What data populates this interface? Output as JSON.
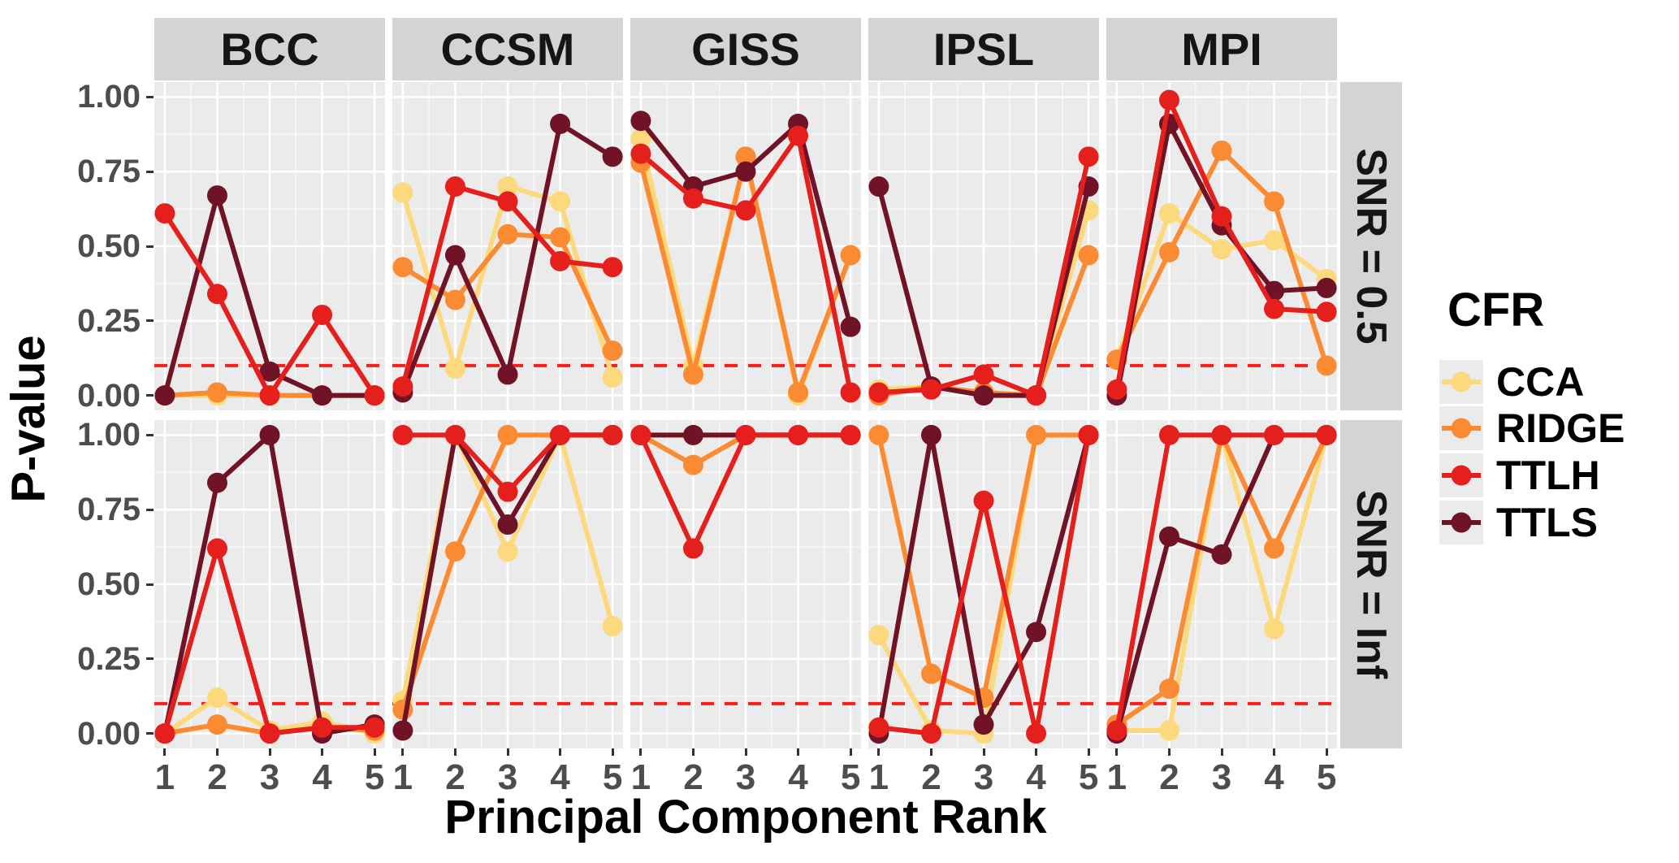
{
  "figure": {
    "y_axis_title": "P-value",
    "x_axis_title": "Principal Component Rank",
    "y_tick_labels": [
      "1.00",
      "0.75",
      "0.50",
      "0.25",
      "0.00"
    ],
    "y_tick_values": [
      1.0,
      0.75,
      0.5,
      0.25,
      0.0
    ],
    "x_tick_labels": [
      "1",
      "2",
      "3",
      "4",
      "5"
    ],
    "col_facets": [
      "BCC",
      "CCSM",
      "GISS",
      "IPSL",
      "MPI"
    ],
    "row_facets": [
      "SNR = 0.5",
      "SNR = Inf"
    ],
    "series_draw_order": [
      "CCA",
      "RIDGE",
      "TTLS",
      "TTLH"
    ],
    "threshold_line": {
      "y": 0.1,
      "color": "#f71e1e",
      "style": "dashed"
    },
    "colors": {
      "CCA": "#fdd97e",
      "RIDGE": "#fb8b33",
      "TTLH": "#e41f1c",
      "TTLS": "#701327",
      "panel_bg": "#ebebeb",
      "grid": "#ffffff",
      "strip_bg": "#d4d4d4",
      "tick_text": "#4d4d4d"
    },
    "legend": {
      "title": "CFR",
      "items": [
        {
          "label": "CCA",
          "color": "#fdd97e"
        },
        {
          "label": "RIDGE",
          "color": "#fb8b33"
        },
        {
          "label": "TTLH",
          "color": "#e41f1c"
        },
        {
          "label": "TTLS",
          "color": "#701327"
        }
      ]
    }
  },
  "chart_data": [
    {
      "type": "line",
      "facet_row": "SNR = 0.5",
      "facet_col": "BCC",
      "x": [
        1,
        2,
        3,
        4,
        5
      ],
      "ylim": [
        0,
        1
      ],
      "series": [
        {
          "name": "CCA",
          "values": [
            0.0,
            0.0,
            0.0,
            0.0,
            0.0
          ]
        },
        {
          "name": "RIDGE",
          "values": [
            0.0,
            0.01,
            0.0,
            0.0,
            0.0
          ]
        },
        {
          "name": "TTLH",
          "values": [
            0.61,
            0.34,
            0.0,
            0.27,
            0.0
          ]
        },
        {
          "name": "TTLS",
          "values": [
            0.0,
            0.67,
            0.08,
            0.0,
            0.0
          ]
        }
      ]
    },
    {
      "type": "line",
      "facet_row": "SNR = 0.5",
      "facet_col": "CCSM",
      "x": [
        1,
        2,
        3,
        4,
        5
      ],
      "ylim": [
        0,
        1
      ],
      "series": [
        {
          "name": "CCA",
          "values": [
            0.68,
            0.09,
            0.7,
            0.65,
            0.06
          ]
        },
        {
          "name": "RIDGE",
          "values": [
            0.43,
            0.32,
            0.54,
            0.53,
            0.15
          ]
        },
        {
          "name": "TTLH",
          "values": [
            0.03,
            0.7,
            0.65,
            0.45,
            0.43
          ]
        },
        {
          "name": "TTLS",
          "values": [
            0.01,
            0.47,
            0.07,
            0.91,
            0.8
          ]
        }
      ]
    },
    {
      "type": "line",
      "facet_row": "SNR = 0.5",
      "facet_col": "GISS",
      "x": [
        1,
        2,
        3,
        4,
        5
      ],
      "ylim": [
        0,
        1
      ],
      "series": [
        {
          "name": "CCA",
          "values": [
            0.86,
            0.1,
            0.8,
            0.0,
            0.47
          ]
        },
        {
          "name": "RIDGE",
          "values": [
            0.78,
            0.07,
            0.8,
            0.01,
            0.47
          ]
        },
        {
          "name": "TTLH",
          "values": [
            0.81,
            0.66,
            0.62,
            0.87,
            0.01
          ]
        },
        {
          "name": "TTLS",
          "values": [
            0.92,
            0.7,
            0.75,
            0.91,
            0.23
          ]
        }
      ]
    },
    {
      "type": "line",
      "facet_row": "SNR = 0.5",
      "facet_col": "IPSL",
      "x": [
        1,
        2,
        3,
        4,
        5
      ],
      "ylim": [
        0,
        1
      ],
      "series": [
        {
          "name": "CCA",
          "values": [
            0.02,
            0.03,
            0.01,
            0.0,
            0.62
          ]
        },
        {
          "name": "RIDGE",
          "values": [
            0.0,
            0.03,
            0.01,
            0.0,
            0.47
          ]
        },
        {
          "name": "TTLH",
          "values": [
            0.01,
            0.02,
            0.07,
            0.0,
            0.8
          ]
        },
        {
          "name": "TTLS",
          "values": [
            0.7,
            0.03,
            0.0,
            0.0,
            0.7
          ]
        }
      ]
    },
    {
      "type": "line",
      "facet_row": "SNR = 0.5",
      "facet_col": "MPI",
      "x": [
        1,
        2,
        3,
        4,
        5
      ],
      "ylim": [
        0,
        1
      ],
      "series": [
        {
          "name": "CCA",
          "values": [
            0.12,
            0.61,
            0.49,
            0.52,
            0.39
          ]
        },
        {
          "name": "RIDGE",
          "values": [
            0.12,
            0.48,
            0.82,
            0.65,
            0.1
          ]
        },
        {
          "name": "TTLH",
          "values": [
            0.02,
            0.99,
            0.6,
            0.29,
            0.28
          ]
        },
        {
          "name": "TTLS",
          "values": [
            0.0,
            0.91,
            0.57,
            0.35,
            0.36
          ]
        }
      ]
    },
    {
      "type": "line",
      "facet_row": "SNR = Inf",
      "facet_col": "BCC",
      "x": [
        1,
        2,
        3,
        4,
        5
      ],
      "ylim": [
        0,
        1
      ],
      "series": [
        {
          "name": "CCA",
          "values": [
            0.0,
            0.12,
            0.01,
            0.04,
            0.0
          ]
        },
        {
          "name": "RIDGE",
          "values": [
            0.0,
            0.03,
            0.0,
            0.02,
            0.01
          ]
        },
        {
          "name": "TTLH",
          "values": [
            0.0,
            0.62,
            0.0,
            0.02,
            0.02
          ]
        },
        {
          "name": "TTLS",
          "values": [
            0.0,
            0.84,
            1.0,
            0.0,
            0.03
          ]
        }
      ]
    },
    {
      "type": "line",
      "facet_row": "SNR = Inf",
      "facet_col": "CCSM",
      "x": [
        1,
        2,
        3,
        4,
        5
      ],
      "ylim": [
        0,
        1
      ],
      "series": [
        {
          "name": "CCA",
          "values": [
            0.11,
            1.0,
            0.61,
            1.0,
            0.36
          ]
        },
        {
          "name": "RIDGE",
          "values": [
            0.08,
            0.61,
            1.0,
            1.0,
            1.0
          ]
        },
        {
          "name": "TTLH",
          "values": [
            1.0,
            1.0,
            0.81,
            1.0,
            1.0
          ]
        },
        {
          "name": "TTLS",
          "values": [
            0.01,
            1.0,
            0.7,
            1.0,
            1.0
          ]
        }
      ]
    },
    {
      "type": "line",
      "facet_row": "SNR = Inf",
      "facet_col": "GISS",
      "x": [
        1,
        2,
        3,
        4,
        5
      ],
      "ylim": [
        0,
        1
      ],
      "series": [
        {
          "name": "CCA",
          "values": [
            1.0,
            1.0,
            1.0,
            1.0,
            1.0
          ]
        },
        {
          "name": "RIDGE",
          "values": [
            1.0,
            0.9,
            1.0,
            1.0,
            1.0
          ]
        },
        {
          "name": "TTLH",
          "values": [
            1.0,
            0.62,
            1.0,
            1.0,
            1.0
          ]
        },
        {
          "name": "TTLS",
          "values": [
            1.0,
            1.0,
            1.0,
            1.0,
            1.0
          ]
        }
      ]
    },
    {
      "type": "line",
      "facet_row": "SNR = Inf",
      "facet_col": "IPSL",
      "x": [
        1,
        2,
        3,
        4,
        5
      ],
      "ylim": [
        0,
        1
      ],
      "series": [
        {
          "name": "CCA",
          "values": [
            0.33,
            0.01,
            0.0,
            1.0,
            1.0
          ]
        },
        {
          "name": "RIDGE",
          "values": [
            1.0,
            0.2,
            0.12,
            1.0,
            1.0
          ]
        },
        {
          "name": "TTLH",
          "values": [
            0.02,
            0.0,
            0.78,
            0.0,
            1.0
          ]
        },
        {
          "name": "TTLS",
          "values": [
            0.0,
            1.0,
            0.03,
            0.34,
            1.0
          ]
        }
      ]
    },
    {
      "type": "line",
      "facet_row": "SNR = Inf",
      "facet_col": "MPI",
      "x": [
        1,
        2,
        3,
        4,
        5
      ],
      "ylim": [
        0,
        1
      ],
      "series": [
        {
          "name": "CCA",
          "values": [
            0.01,
            0.01,
            1.0,
            0.35,
            1.0
          ]
        },
        {
          "name": "RIDGE",
          "values": [
            0.03,
            0.15,
            1.0,
            0.62,
            1.0
          ]
        },
        {
          "name": "TTLH",
          "values": [
            0.01,
            1.0,
            1.0,
            1.0,
            1.0
          ]
        },
        {
          "name": "TTLS",
          "values": [
            0.0,
            0.66,
            0.6,
            1.0,
            1.0
          ]
        }
      ]
    }
  ]
}
